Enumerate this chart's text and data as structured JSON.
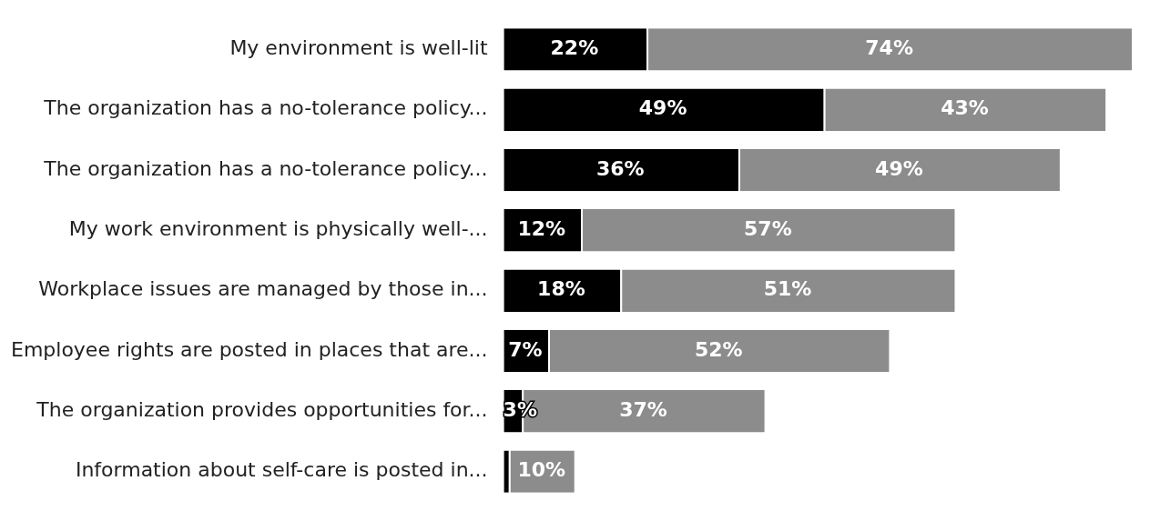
{
  "chart_data": {
    "type": "bar",
    "orientation": "horizontal",
    "stacked": true,
    "categories": [
      "My environment is well-lit",
      "The organization has a no-tolerance policy...",
      "The organization has a no-tolerance policy...",
      "My work environment is physically well-...",
      "Workplace issues are managed by those in...",
      "Employee rights are posted in places that are...",
      "The organization provides opportunities for...",
      "Information about self-care is posted in..."
    ],
    "series": [
      {
        "color": "#000000",
        "values": [
          22,
          49,
          36,
          12,
          18,
          7,
          3,
          1
        ],
        "value_labels": [
          "22%",
          "49%",
          "36%",
          "12%",
          "18%",
          "7%",
          "3%",
          null
        ]
      },
      {
        "color": "#8c8c8c",
        "values": [
          74,
          43,
          49,
          57,
          51,
          52,
          37,
          10
        ],
        "value_labels": [
          "74%",
          "43%",
          "49%",
          "57%",
          "51%",
          "52%",
          "37%",
          "10%"
        ]
      }
    ],
    "grid": false,
    "legend": false
  }
}
